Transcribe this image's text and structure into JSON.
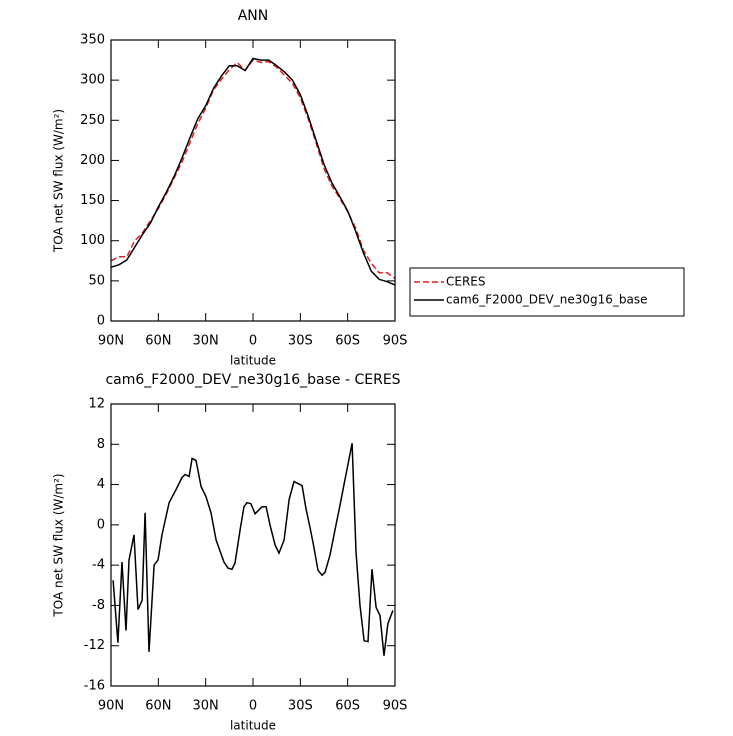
{
  "chart_data": [
    {
      "type": "line",
      "title": "ANN",
      "xlabel": "latitude",
      "ylabel": "TOA net SW flux (W/m²)",
      "x": [
        90,
        85,
        80,
        75,
        70,
        65,
        60,
        55,
        50,
        45,
        40,
        35,
        30,
        25,
        20,
        15,
        10,
        5,
        0,
        -5,
        -10,
        -15,
        -20,
        -25,
        -30,
        -35,
        -40,
        -45,
        -50,
        -55,
        -60,
        -65,
        -70,
        -75,
        -80,
        -85,
        -90
      ],
      "series": [
        {
          "name": "CERES",
          "color": "#e02020",
          "style": "dashed",
          "values": [
            75,
            80,
            80,
            100,
            110,
            125,
            140,
            158,
            178,
            198,
            222,
            246,
            265,
            288,
            301,
            313,
            322,
            312,
            325,
            322,
            323,
            316,
            306,
            296,
            278,
            252,
            222,
            190,
            168,
            153,
            136,
            116,
            88,
            72,
            60,
            60,
            53
          ]
        },
        {
          "name": "cam6_F2000_DEV_ne30g16_base",
          "color": "#000000",
          "style": "solid",
          "values": [
            67,
            70,
            76,
            92,
            108,
            122,
            142,
            160,
            180,
            203,
            228,
            252,
            268,
            290,
            305,
            318,
            318,
            312,
            327,
            325,
            325,
            318,
            310,
            300,
            282,
            255,
            225,
            195,
            172,
            155,
            137,
            112,
            85,
            62,
            52,
            49,
            45
          ]
        }
      ],
      "xlim": [
        90,
        -90
      ],
      "xticks": [
        {
          "value": 90,
          "label": "90N"
        },
        {
          "value": 60,
          "label": "60N"
        },
        {
          "value": 30,
          "label": "30N"
        },
        0,
        {
          "value": -30,
          "label": "30S"
        },
        {
          "value": -60,
          "label": "60S"
        },
        {
          "value": -90,
          "label": "90S"
        }
      ],
      "ylim": [
        0,
        350
      ],
      "yticks": [
        0,
        50,
        100,
        150,
        200,
        250,
        300,
        350
      ],
      "legend": "right"
    },
    {
      "type": "line",
      "title": "cam6_F2000_DEV_ne30g16_base - CERES",
      "xlabel": "latitude",
      "ylabel": "TOA net SW flux (W/m²)",
      "x": [
        88.7,
        85.6,
        83,
        80.5,
        78.6,
        75.4,
        72.9,
        70.3,
        68.4,
        65.9,
        62.7,
        60.2,
        57.7,
        53.2,
        48.8,
        45,
        43,
        40.5,
        38.6,
        36.1,
        32.9,
        29.8,
        26.6,
        23.4,
        18.4,
        15.8,
        13.3,
        11.4,
        8.2,
        5.7,
        3.8,
        1.3,
        -1.3,
        -3.8,
        -5.7,
        -8.3,
        -10.8,
        -14,
        -16.5,
        -19.7,
        -22.9,
        -26,
        -28.6,
        -31.1,
        -33.6,
        -36.2,
        -38.1,
        -41.2,
        -43.8,
        -45.7,
        -48.8,
        -52,
        -55.2,
        -58.3,
        -62.8,
        -65.3,
        -67.8,
        -70.4,
        -72.9,
        -75.4,
        -78,
        -80.5,
        -83,
        -85.5,
        -88.7
      ],
      "values": [
        -5.5,
        -11.7,
        -3.7,
        -10.5,
        -3.5,
        -1,
        -8.4,
        -7.5,
        1.2,
        -12.6,
        -4,
        -3.5,
        -1,
        2.2,
        3.5,
        4.7,
        5,
        4.8,
        6.6,
        6.4,
        3.8,
        2.8,
        1.2,
        -1.5,
        -3.7,
        -4.3,
        -4.4,
        -3.8,
        -0.5,
        1.8,
        2.2,
        2.1,
        1.1,
        1.5,
        1.8,
        1.8,
        0,
        -2,
        -2.8,
        -1.5,
        2.5,
        4.3,
        4.1,
        3.9,
        1.6,
        -0.3,
        -1.8,
        -4.5,
        -5,
        -4.7,
        -3,
        -0.5,
        2,
        4.5,
        8.1,
        -2.7,
        -8,
        -11.5,
        -11.6,
        -4.4,
        -8.2,
        -9,
        -13,
        -9.8,
        -8.5
      ],
      "color": "#000000",
      "xlim": [
        90,
        -90
      ],
      "xticks": [
        {
          "value": 90,
          "label": "90N"
        },
        {
          "value": 60,
          "label": "60N"
        },
        {
          "value": 30,
          "label": "30N"
        },
        0,
        {
          "value": -30,
          "label": "30S"
        },
        {
          "value": -60,
          "label": "60S"
        },
        {
          "value": -90,
          "label": "90S"
        }
      ],
      "ylim": [
        -16,
        12
      ],
      "yticks": [
        -16,
        -12,
        -8,
        -4,
        0,
        4,
        8,
        12
      ]
    }
  ]
}
